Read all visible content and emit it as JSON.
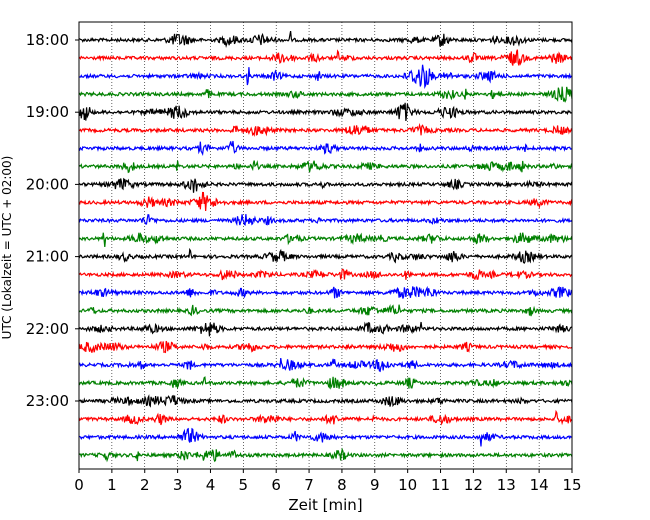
{
  "chart_data": {
    "type": "line",
    "title": "",
    "xlabel": "Zeit  [min]",
    "ylabel": "UTC (Lokalzeit = UTC + 02:00)",
    "xlim": [
      0,
      15
    ],
    "x_ticks": [
      "0",
      "1",
      "2",
      "3",
      "4",
      "5",
      "6",
      "7",
      "8",
      "9",
      "10",
      "11",
      "12",
      "13",
      "14",
      "15"
    ],
    "y_tick_labels": [
      "18:00",
      "19:00",
      "20:00",
      "21:00",
      "22:00",
      "23:00"
    ],
    "grid": "vertical dotted",
    "trace_interval_minutes": 15,
    "trace_colors": [
      "#000000",
      "#ff0000",
      "#0000ff",
      "#008000"
    ],
    "traces": [
      {
        "start": "18:00",
        "color": "#000000"
      },
      {
        "start": "18:15",
        "color": "#ff0000"
      },
      {
        "start": "18:30",
        "color": "#0000ff"
      },
      {
        "start": "18:45",
        "color": "#008000"
      },
      {
        "start": "19:00",
        "color": "#000000"
      },
      {
        "start": "19:15",
        "color": "#ff0000"
      },
      {
        "start": "19:30",
        "color": "#0000ff"
      },
      {
        "start": "19:45",
        "color": "#008000"
      },
      {
        "start": "20:00",
        "color": "#000000"
      },
      {
        "start": "20:15",
        "color": "#ff0000"
      },
      {
        "start": "20:30",
        "color": "#0000ff"
      },
      {
        "start": "20:45",
        "color": "#008000"
      },
      {
        "start": "21:00",
        "color": "#000000"
      },
      {
        "start": "21:15",
        "color": "#ff0000"
      },
      {
        "start": "21:30",
        "color": "#0000ff"
      },
      {
        "start": "21:45",
        "color": "#008000"
      },
      {
        "start": "22:00",
        "color": "#000000"
      },
      {
        "start": "22:15",
        "color": "#ff0000"
      },
      {
        "start": "22:30",
        "color": "#0000ff"
      },
      {
        "start": "22:45",
        "color": "#008000"
      },
      {
        "start": "23:00",
        "color": "#000000"
      },
      {
        "start": "23:15",
        "color": "#ff0000"
      },
      {
        "start": "23:30",
        "color": "#0000ff"
      },
      {
        "start": "23:45",
        "color": "#008000"
      }
    ]
  }
}
